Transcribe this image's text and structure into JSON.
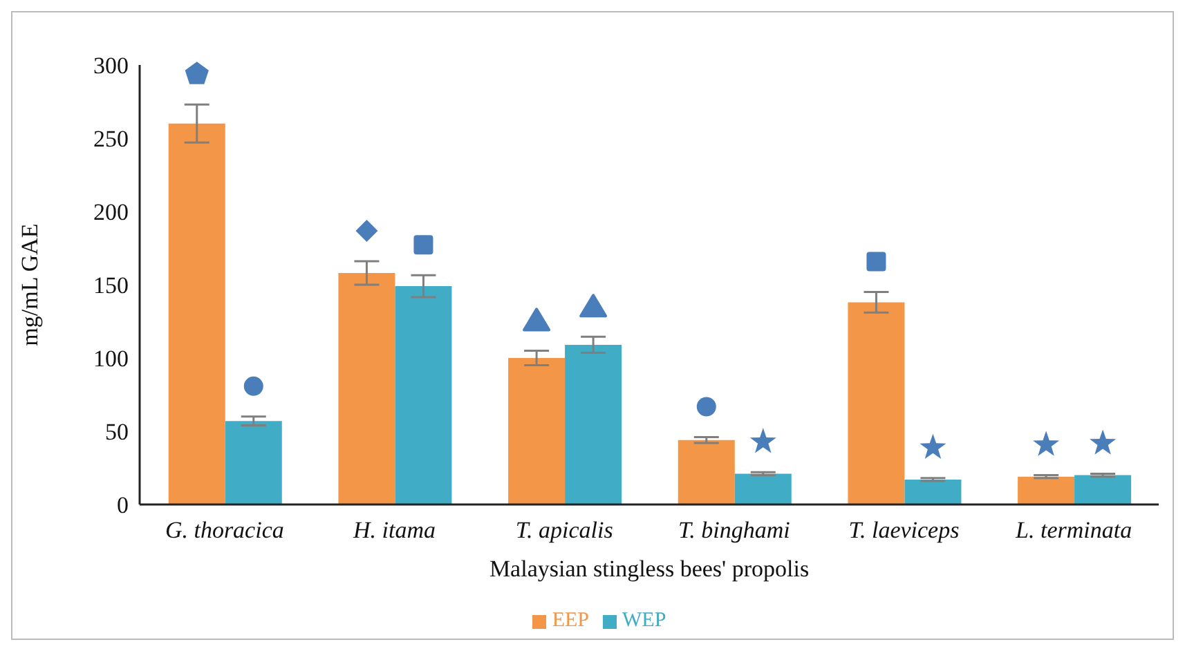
{
  "chart_data": {
    "type": "bar",
    "xlabel": "Malaysian stingless bees' propolis",
    "ylabel": "mg/mL GAE",
    "categories": [
      "G. thoracica",
      "H. itama",
      "T. apicalis",
      "T. binghami",
      "T. laeviceps",
      "L. terminata"
    ],
    "series": [
      {
        "name": "EEP",
        "color": "#f39647",
        "values": [
          260,
          158,
          100,
          44,
          138,
          19
        ],
        "errors": [
          13,
          8,
          5,
          2,
          7,
          1
        ]
      },
      {
        "name": "WEP",
        "color": "#41acc6",
        "values": [
          57,
          149,
          109,
          21,
          17,
          20
        ],
        "errors": [
          3,
          7.5,
          5.5,
          1,
          1,
          1
        ]
      }
    ],
    "ylim": [
      0,
      300
    ],
    "yticks": [
      0,
      50,
      100,
      150,
      200,
      250,
      300
    ],
    "grid": false,
    "legend": "bottom"
  }
}
